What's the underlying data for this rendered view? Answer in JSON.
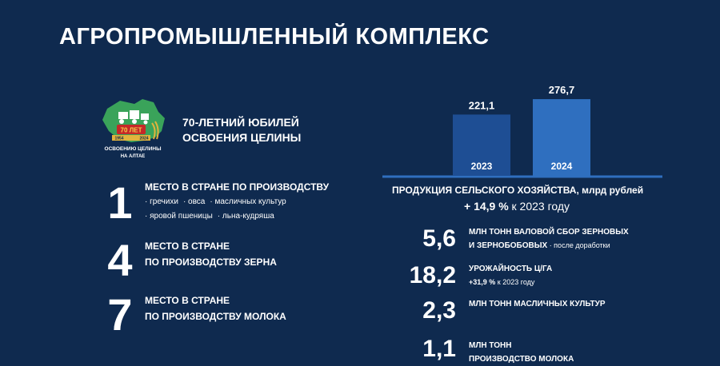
{
  "header": {
    "title": "АГРОПРОМЫШЛЕННЫЙ КОМПЛЕКС"
  },
  "logo": {
    "badge": "70 ЛЕТ",
    "year_left": "1954",
    "year_right": "2024",
    "caption_line1": "ОСВОЕНИЮ ЦЕЛИНЫ",
    "caption_line2": "НА АЛТАЕ"
  },
  "jubilee": {
    "line1": "70-ЛЕТНИЙ ЮБИЛЕЙ",
    "line2": "ОСВОЕНИЯ ЦЕЛИНЫ"
  },
  "ranks": [
    {
      "number": "1",
      "line1": "МЕСТО В СТРАНЕ ПО ПРОИЗВОДСТВУ",
      "line2": "",
      "items_row1": [
        "· гречихи",
        "· овса",
        "· масличных культур"
      ],
      "items_row2": [
        "· яровой пшеницы",
        "· льна-кудряша"
      ]
    },
    {
      "number": "4",
      "line1": "МЕСТО В СТРАНЕ",
      "line2": "ПО ПРОИЗВОДСТВУ ЗЕРНА"
    },
    {
      "number": "7",
      "line1": "МЕСТО В СТРАНЕ",
      "line2": "ПО ПРОИЗВОДСТВУ МОЛОКА"
    }
  ],
  "chart_data": {
    "type": "bar",
    "categories": [
      "2023",
      "2024"
    ],
    "values": [
      221.1,
      276.7
    ],
    "value_labels": [
      "221,1",
      "276,7"
    ],
    "colors": [
      "#1e4e94",
      "#2f6fbf"
    ],
    "title": "ПРОДУКЦИЯ СЕЛЬСКОГО ХОЗЯЙСТВА, млрд рублей",
    "ylim": [
      0,
      300
    ]
  },
  "chart_growth": {
    "bold": "+ 14,9 %",
    "rest": " к 2023 году"
  },
  "stats": [
    {
      "number": "5,6",
      "line1": "МЛН ТОНН ВАЛОВОЙ СБОР ЗЕРНОВЫХ",
      "line2": "И ЗЕРНОБОБОВЫХ",
      "note": " · после доработки"
    },
    {
      "number": "18,2",
      "line1": "УРОЖАЙНОСТЬ Ц/ГА",
      "line2_bold": "+31,9 %",
      "line2_rest": " к 2023 году"
    },
    {
      "number": "2,3",
      "line1": "МЛН ТОНН МАСЛИЧНЫХ КУЛЬТУР"
    },
    {
      "number": "1,1",
      "line1": "МЛН ТОНН",
      "line2": "ПРОИЗВОДСТВО МОЛОКА"
    }
  ]
}
